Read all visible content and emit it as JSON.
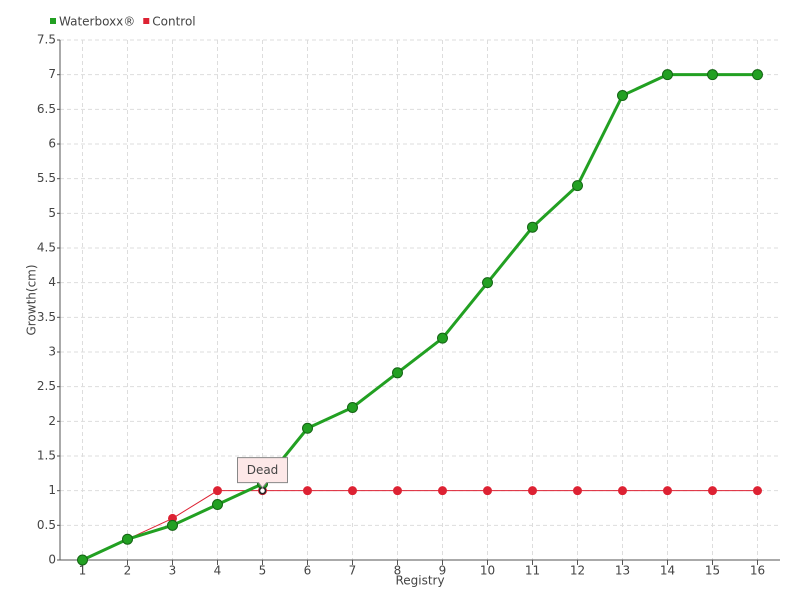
{
  "chart_data": {
    "type": "line",
    "x_label": "Registry",
    "y_label": "Growth(cm)",
    "categories": [
      "1",
      "2",
      "3",
      "4",
      "5",
      "6",
      "7",
      "8",
      "9",
      "10",
      "11",
      "12",
      "13",
      "14",
      "15",
      "16"
    ],
    "series": [
      {
        "name": "Waterboxx®",
        "color": "#22a022",
        "values": [
          0,
          0.3,
          0.5,
          0.8,
          1.1,
          1.9,
          2.2,
          2.7,
          3.2,
          4,
          4.8,
          5.4,
          6.7,
          7,
          7,
          7
        ]
      },
      {
        "name": "Control",
        "color": "#dd2233",
        "values": [
          0,
          0.3,
          0.6,
          1,
          1,
          1,
          1,
          1,
          1,
          1,
          1,
          1,
          1,
          1,
          1,
          1
        ]
      }
    ],
    "ylim": [
      0,
      7.5
    ],
    "yticks": [
      0,
      0.5,
      1,
      1.5,
      2,
      2.5,
      3,
      3.5,
      4,
      4.5,
      5,
      5.5,
      6,
      6.5,
      7,
      7.5
    ],
    "grid": true,
    "legend": "top-left",
    "annotations": [
      {
        "text": "Dead",
        "series": "Control",
        "x": "5"
      }
    ]
  }
}
